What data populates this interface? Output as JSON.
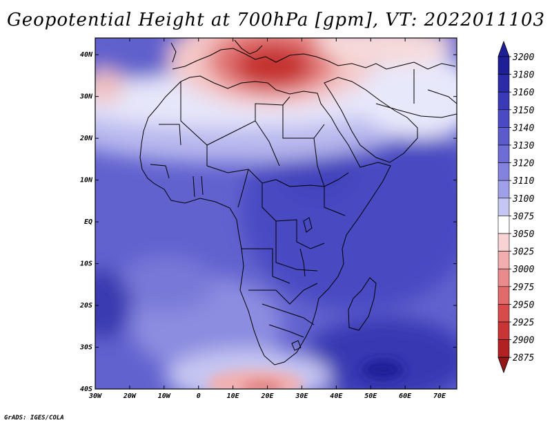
{
  "title": "Geopotential Height at 700hPa [gpm], VT: 2022011103",
  "credit": "GrADS: IGES/COLA",
  "map": {
    "lon_labels": [
      "30W",
      "20W",
      "10W",
      "0",
      "10E",
      "20E",
      "30E",
      "40E",
      "50E",
      "60E",
      "70E"
    ],
    "lat_labels": [
      "40N",
      "30N",
      "20N",
      "10N",
      "EQ",
      "10S",
      "20S",
      "30S",
      "40S"
    ],
    "lon_range": [
      -30,
      75
    ],
    "lat_range": [
      -40,
      44
    ]
  },
  "colorbar": {
    "levels": [
      "3200",
      "3180",
      "3160",
      "3150",
      "3140",
      "3130",
      "3120",
      "3110",
      "3100",
      "3075",
      "3050",
      "3025",
      "3000",
      "2975",
      "2950",
      "2925",
      "2900",
      "2875"
    ],
    "colors": [
      "#1e1e96",
      "#2b2ba8",
      "#3a3ab8",
      "#4a4ac4",
      "#5b5bcc",
      "#6d6dd5",
      "#8383de",
      "#a0a0e8",
      "#c6c6f2",
      "#ffffff",
      "#f9d3d3",
      "#f2aeae",
      "#ea8b8b",
      "#e26a6a",
      "#d84b4b",
      "#c93434",
      "#b22222",
      "#951818"
    ]
  },
  "colors": {
    "deep_blue": "#2a2a9e",
    "red_high": "#c0282a",
    "outline": "#000000"
  }
}
